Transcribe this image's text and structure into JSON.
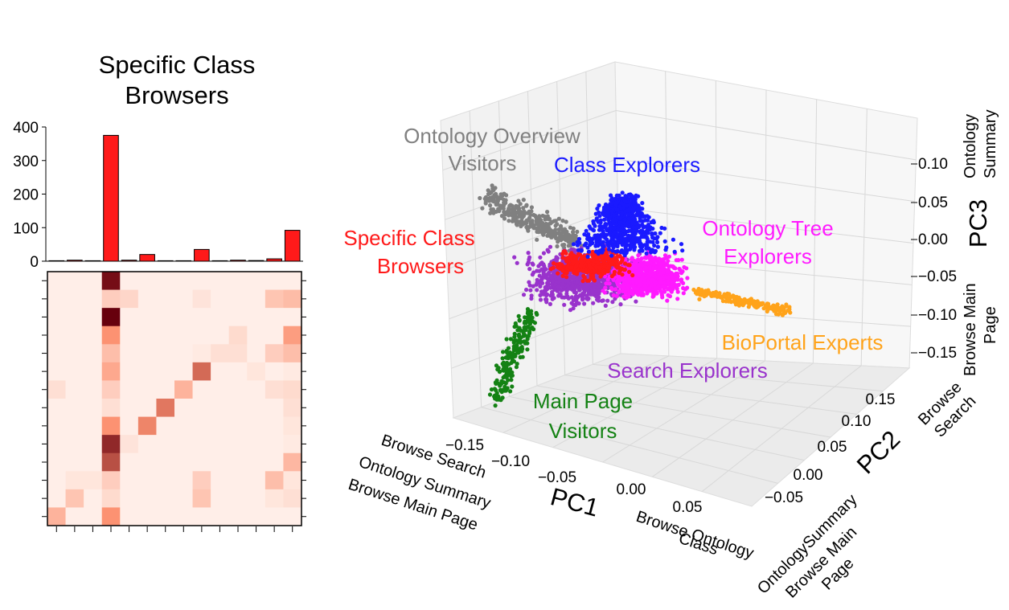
{
  "hist_chart": {
    "title_lines": [
      "Specific Class",
      "Browsers"
    ],
    "type": "bar",
    "y_ticks": [
      "0",
      "100",
      "200",
      "300",
      "400"
    ],
    "colors": {
      "bar": "#ff1a1a",
      "edge": "#000000"
    },
    "chart_data": {
      "type": "bar",
      "values": [
        0,
        3,
        0,
        375,
        3,
        20,
        0,
        0,
        35,
        0,
        3,
        2,
        7,
        92
      ],
      "ylim": [
        0,
        400
      ]
    }
  },
  "heatmap_chart": {
    "chart_data": {
      "type": "heatmap",
      "colormap": "Reds",
      "matrix": [
        [
          0.03,
          0.03,
          0.03,
          0.95,
          0.03,
          0.03,
          0.03,
          0.03,
          0.03,
          0.03,
          0.03,
          0.03,
          0.03,
          0.03
        ],
        [
          0.03,
          0.03,
          0.03,
          0.18,
          0.14,
          0.03,
          0.03,
          0.03,
          0.08,
          0.03,
          0.03,
          0.03,
          0.22,
          0.26
        ],
        [
          0.03,
          0.03,
          0.03,
          1.0,
          0.03,
          0.03,
          0.03,
          0.03,
          0.03,
          0.03,
          0.03,
          0.03,
          0.03,
          0.03
        ],
        [
          0.03,
          0.03,
          0.03,
          0.45,
          0.03,
          0.03,
          0.03,
          0.03,
          0.03,
          0.03,
          0.12,
          0.03,
          0.03,
          0.4
        ],
        [
          0.03,
          0.03,
          0.03,
          0.25,
          0.03,
          0.03,
          0.03,
          0.03,
          0.05,
          0.1,
          0.1,
          0.03,
          0.18,
          0.25
        ],
        [
          0.03,
          0.03,
          0.03,
          0.35,
          0.03,
          0.03,
          0.03,
          0.03,
          0.6,
          0.03,
          0.03,
          0.07,
          0.03,
          0.05
        ],
        [
          0.1,
          0.03,
          0.03,
          0.18,
          0.03,
          0.03,
          0.03,
          0.3,
          0.03,
          0.03,
          0.03,
          0.03,
          0.1,
          0.12
        ],
        [
          0.03,
          0.03,
          0.03,
          0.1,
          0.03,
          0.03,
          0.55,
          0.03,
          0.03,
          0.03,
          0.03,
          0.03,
          0.03,
          0.1
        ],
        [
          0.03,
          0.03,
          0.03,
          0.45,
          0.03,
          0.5,
          0.03,
          0.03,
          0.03,
          0.03,
          0.03,
          0.03,
          0.03,
          0.07
        ],
        [
          0.03,
          0.03,
          0.03,
          0.85,
          0.08,
          0.03,
          0.03,
          0.03,
          0.03,
          0.03,
          0.03,
          0.03,
          0.03,
          0.05
        ],
        [
          0.03,
          0.03,
          0.03,
          0.7,
          0.03,
          0.03,
          0.03,
          0.03,
          0.03,
          0.03,
          0.03,
          0.03,
          0.03,
          0.28
        ],
        [
          0.03,
          0.07,
          0.07,
          0.18,
          0.03,
          0.03,
          0.03,
          0.03,
          0.18,
          0.03,
          0.03,
          0.03,
          0.25,
          0.07
        ],
        [
          0.03,
          0.22,
          0.03,
          0.12,
          0.03,
          0.03,
          0.03,
          0.03,
          0.22,
          0.03,
          0.03,
          0.03,
          0.07,
          0.1
        ],
        [
          0.3,
          0.03,
          0.03,
          0.45,
          0.03,
          0.03,
          0.03,
          0.03,
          0.03,
          0.03,
          0.03,
          0.03,
          0.03,
          0.03
        ]
      ]
    }
  },
  "pca_chart": {
    "chart_data": {
      "type": "scatter",
      "xlabel": "PC1",
      "ylabel": "PC2",
      "zlabel": "PC3",
      "x_ticks": [
        "−0.15",
        "−0.10",
        "−0.05",
        "0.00",
        "0.05"
      ],
      "y_ticks": [
        "−0.05",
        "0.00",
        "0.05",
        "0.10",
        "0.15"
      ],
      "z_ticks": [
        "−0.15",
        "−0.10",
        "−0.05",
        "0.00",
        "0.05",
        "0.10"
      ],
      "axis_annotations": {
        "x_neg": [
          "Browse Search",
          "Ontology Summary",
          "Browse Main Page"
        ],
        "x_pos": [
          "Browse Ontology",
          "Class"
        ],
        "y_neg": [
          "OntologySummary",
          "Browse Main",
          "Page"
        ],
        "y_pos": [
          "Browse",
          "Search"
        ],
        "z_pos": [
          "Ontology",
          "Summary"
        ],
        "z_neg": [
          "Browse Main",
          "Page"
        ]
      },
      "series": [
        {
          "name": "Ontology Overview Visitors",
          "label_lines": [
            "Ontology Overview",
            "Visitors"
          ],
          "color": "#808080"
        },
        {
          "name": "Class Explorers",
          "label_lines": [
            "Class Explorers"
          ],
          "color": "#1a1aff"
        },
        {
          "name": "Specific Class Browsers",
          "label_lines": [
            "Specific Class",
            "Browsers"
          ],
          "color": "#ff1a1a"
        },
        {
          "name": "Ontology Tree Explorers",
          "label_lines": [
            "Ontology Tree",
            "Explorers"
          ],
          "color": "#ff1aff"
        },
        {
          "name": "BioPortal Experts",
          "label_lines": [
            "BioPortal Experts"
          ],
          "color": "#ffa31a"
        },
        {
          "name": "Search Explorers",
          "label_lines": [
            "Search Explorers"
          ],
          "color": "#9933cc"
        },
        {
          "name": "Main Page Visitors",
          "label_lines": [
            "Main Page",
            "Visitors"
          ],
          "color": "#148214"
        }
      ]
    }
  }
}
